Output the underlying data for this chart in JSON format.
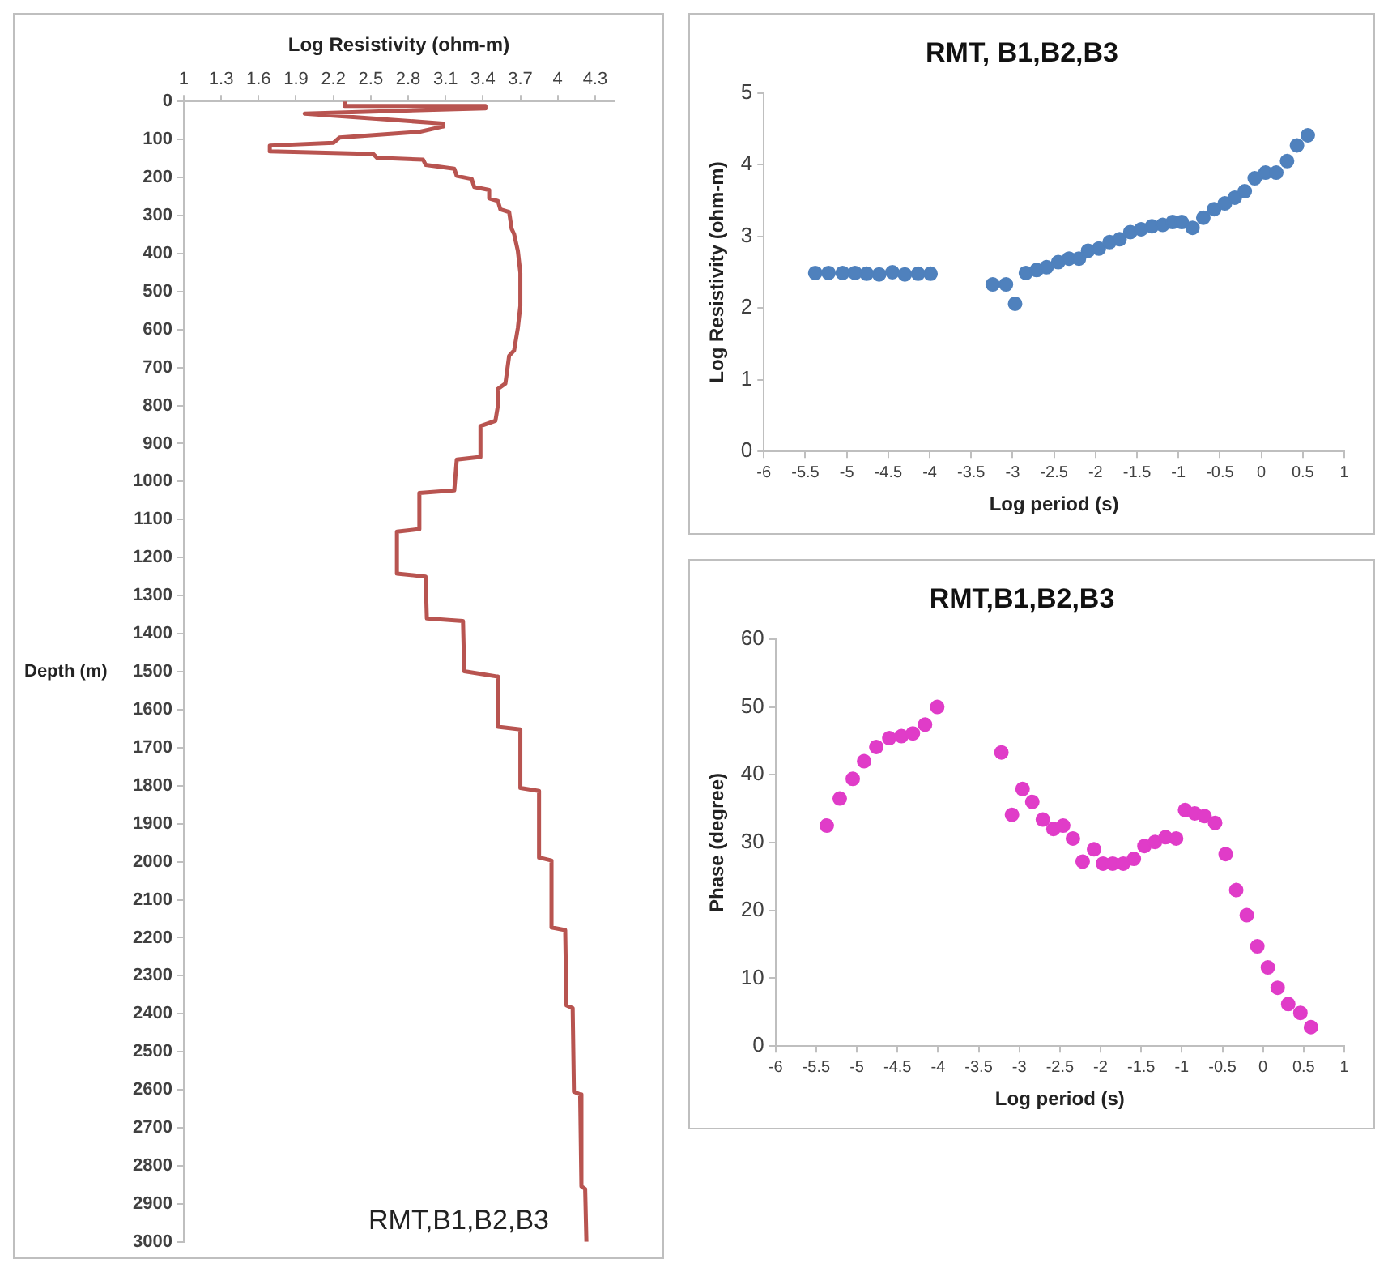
{
  "chart_data": [
    {
      "type": "line",
      "xlabel": "Log Resistivity (ohm-m)",
      "ylabel": "Depth (m)",
      "xlim": [
        1,
        4.45
      ],
      "xticks": [
        1,
        1.3,
        1.6,
        1.9,
        2.2,
        2.5,
        2.8,
        3.1,
        3.4,
        3.7,
        4,
        4.3
      ],
      "ylim": [
        3000,
        0
      ],
      "yticks": [
        0,
        100,
        200,
        300,
        400,
        500,
        600,
        700,
        800,
        900,
        1000,
        1100,
        1200,
        1300,
        1400,
        1500,
        1600,
        1700,
        1800,
        1900,
        2000,
        2100,
        2200,
        2300,
        2400,
        2500,
        2600,
        2700,
        2800,
        2900,
        3000
      ],
      "grid": false,
      "annotations": [
        "RMT,B1,B2,B3"
      ],
      "series": [
        {
          "color": "#b85450",
          "x": [
            2.29,
            2.29,
            3.42,
            3.42,
            1.97,
            3.08,
            3.08,
            2.89,
            2.25,
            2.2,
            1.69,
            1.69,
            2.52,
            2.55,
            2.92,
            2.94,
            3.17,
            3.19,
            3.31,
            3.33,
            3.45,
            3.45,
            3.52,
            3.54,
            3.61,
            3.63,
            3.65,
            3.68,
            3.7,
            3.7,
            3.68,
            3.65,
            3.61,
            3.58,
            3.52,
            3.52,
            3.5,
            3.38,
            3.38,
            3.19,
            3.17,
            2.89,
            2.89,
            2.71,
            2.71,
            2.94,
            2.95,
            3.24,
            3.25,
            3.52,
            3.52,
            3.7,
            3.7,
            3.85,
            3.85,
            3.95,
            3.95,
            4.06,
            4.07,
            4.12,
            4.13,
            4.18,
            4.19,
            4.22,
            4.23
          ],
          "values": [
            0,
            12,
            12,
            18,
            32,
            58,
            66,
            80,
            95,
            109,
            116,
            131,
            138,
            148,
            153,
            167,
            177,
            196,
            204,
            225,
            233,
            255,
            262,
            284,
            291,
            335,
            349,
            393,
            451,
            538,
            596,
            655,
            669,
            742,
            756,
            800,
            840,
            854,
            935,
            942,
            1023,
            1030,
            1125,
            1132,
            1242,
            1250,
            1360,
            1367,
            1499,
            1513,
            1645,
            1652,
            1806,
            1814,
            1989,
            1997,
            2173,
            2180,
            2378,
            2385,
            2605,
            2612,
            2854,
            2861,
            3000
          ]
        }
      ]
    },
    {
      "type": "scatter",
      "title": "RMT, B1,B2,B3",
      "xlabel": "Log period (s)",
      "ylabel": "Log Resistivity (ohm-m)",
      "xlim": [
        -6,
        1
      ],
      "xticks": [
        -6,
        -5.5,
        -5,
        -4.5,
        -4,
        -3.5,
        -3,
        -2.5,
        -2,
        -1.5,
        -1,
        -0.5,
        0,
        0.5,
        1
      ],
      "ylim": [
        0,
        5
      ],
      "yticks": [
        0,
        1,
        2,
        3,
        4,
        5
      ],
      "grid": false,
      "marker": "circle",
      "series": [
        {
          "color": "#4f81bd",
          "x": [
            -5.38,
            -5.22,
            -5.05,
            -4.9,
            -4.76,
            -4.61,
            -4.45,
            -4.3,
            -4.14,
            -3.99,
            -3.24,
            -3.08,
            -2.97,
            -2.84,
            -2.71,
            -2.59,
            -2.45,
            -2.32,
            -2.2,
            -2.09,
            -1.96,
            -1.83,
            -1.71,
            -1.58,
            -1.45,
            -1.32,
            -1.19,
            -1.07,
            -0.96,
            -0.83,
            -0.7,
            -0.57,
            -0.44,
            -0.32,
            -0.2,
            -0.08,
            0.05,
            0.18,
            0.31,
            0.43,
            0.56
          ],
          "values": [
            2.49,
            2.49,
            2.49,
            2.49,
            2.48,
            2.47,
            2.5,
            2.47,
            2.48,
            2.48,
            2.33,
            2.33,
            2.06,
            2.49,
            2.53,
            2.57,
            2.64,
            2.69,
            2.69,
            2.8,
            2.83,
            2.92,
            2.96,
            3.06,
            3.1,
            3.14,
            3.16,
            3.2,
            3.2,
            3.12,
            3.26,
            3.38,
            3.46,
            3.54,
            3.63,
            3.81,
            3.89,
            3.89,
            4.05,
            4.27,
            4.41
          ]
        }
      ]
    },
    {
      "type": "scatter",
      "title": "RMT,B1,B2,B3",
      "xlabel": "Log period (s)",
      "ylabel": "Phase (degree)",
      "xlim": [
        -6,
        1
      ],
      "xticks": [
        -6,
        -5.5,
        -5,
        -4.5,
        -4,
        -3.5,
        -3,
        -2.5,
        -2,
        -1.5,
        -1,
        -0.5,
        0,
        0.5,
        1
      ],
      "ylim": [
        0,
        60
      ],
      "yticks": [
        0,
        10,
        20,
        30,
        40,
        50,
        60
      ],
      "grid": false,
      "marker": "circle",
      "series": [
        {
          "color": "#e03cc8",
          "x": [
            -5.37,
            -5.21,
            -5.05,
            -4.91,
            -4.76,
            -4.6,
            -4.45,
            -4.31,
            -4.16,
            -4.01,
            -3.22,
            -3.09,
            -2.96,
            -2.84,
            -2.71,
            -2.58,
            -2.46,
            -2.34,
            -2.22,
            -2.08,
            -1.97,
            -1.85,
            -1.72,
            -1.59,
            -1.46,
            -1.33,
            -1.2,
            -1.07,
            -0.96,
            -0.84,
            -0.72,
            -0.59,
            -0.46,
            -0.33,
            -0.2,
            -0.07,
            0.06,
            0.18,
            0.31,
            0.46,
            0.59
          ],
          "values": [
            32.5,
            36.5,
            39.4,
            42,
            44.1,
            45.4,
            45.7,
            46.1,
            47.4,
            50,
            43.3,
            34.1,
            37.9,
            36,
            33.4,
            32,
            32.5,
            30.6,
            27.2,
            29,
            26.9,
            26.9,
            26.9,
            27.6,
            29.5,
            30.1,
            30.8,
            30.6,
            34.8,
            34.3,
            33.9,
            32.9,
            28.3,
            23,
            19.3,
            14.7,
            11.6,
            8.6,
            6.2,
            4.9,
            2.8
          ]
        }
      ]
    }
  ]
}
